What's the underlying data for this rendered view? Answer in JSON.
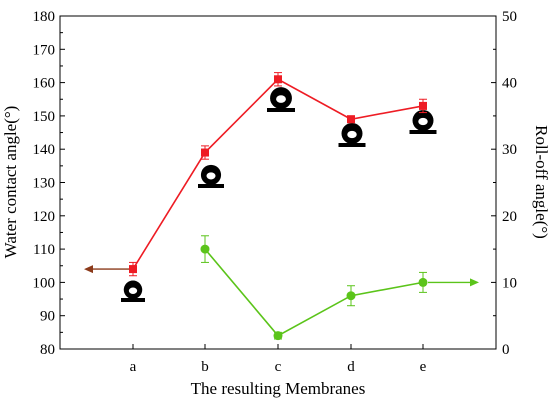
{
  "chart_data": {
    "type": "line",
    "categories": [
      "a",
      "b",
      "c",
      "d",
      "e"
    ],
    "xlabel": "The resulting Membranes",
    "ylabel_left": "Water contact angle(°)",
    "ylabel_right": "Roll-off angle(°)",
    "ylim_left": [
      80,
      180
    ],
    "yticks_left": [
      "80",
      "90",
      "100",
      "110",
      "120",
      "130",
      "140",
      "150",
      "160",
      "170",
      "180"
    ],
    "ylim_right": [
      0,
      50
    ],
    "yticks_right": [
      "0",
      "10",
      "20",
      "30",
      "40",
      "50"
    ],
    "grid": false,
    "series": [
      {
        "axis": "left",
        "color": "#ee1c24",
        "marker": "square",
        "values": [
          104,
          139,
          161,
          149,
          153
        ],
        "errors": [
          2,
          2,
          2,
          1,
          2
        ],
        "arrow": "left"
      },
      {
        "axis": "right",
        "color": "#5bc41a",
        "marker": "circle",
        "values": [
          null,
          15,
          2,
          8,
          10
        ],
        "errors": [
          null,
          2,
          0.5,
          1.5,
          1.5
        ],
        "arrow": "right"
      }
    ],
    "droplet_icons": [
      "a",
      "b",
      "c",
      "d",
      "e"
    ]
  }
}
